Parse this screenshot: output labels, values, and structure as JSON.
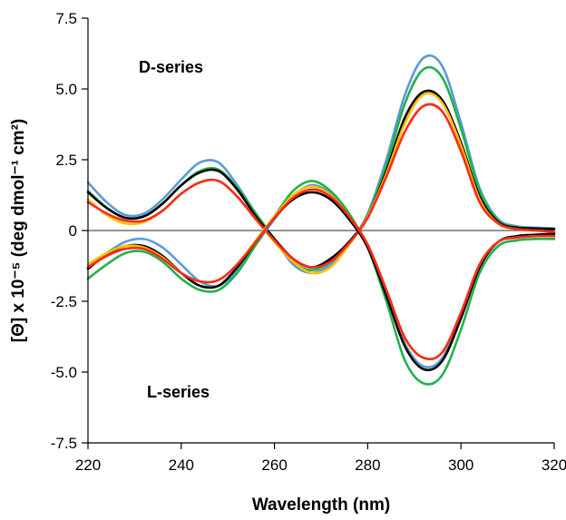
{
  "chart_data": {
    "type": "line",
    "title": "",
    "xlabel": "Wavelength (nm)",
    "ylabel": "[Θ] x 10⁻⁵ (deg dmol⁻¹ cm²)",
    "xlim": [
      220,
      320
    ],
    "ylim": [
      -7.5,
      7.5
    ],
    "x_ticks": [
      "220",
      "240",
      "260",
      "280",
      "300",
      "320"
    ],
    "y_ticks": [
      "7.5",
      "5.0",
      "2.5",
      "0",
      "-2.5",
      "-5.0",
      "-7.5"
    ],
    "grid": false,
    "legend": "none",
    "annotations": [
      {
        "text": "D-series",
        "x": 230,
        "y": 5.8
      },
      {
        "text": "L-series",
        "x": 230,
        "y": -5.8
      }
    ],
    "x": [
      220,
      224,
      228,
      232,
      236,
      240,
      244,
      248,
      252,
      256,
      260,
      264,
      268,
      272,
      276,
      280,
      284,
      288,
      292,
      296,
      300,
      304,
      308,
      312,
      316,
      320
    ],
    "series": [
      {
        "group": "D-series",
        "color": "#5b9bd5",
        "values": [
          1.7,
          1.0,
          0.55,
          0.6,
          1.1,
          1.8,
          2.4,
          2.4,
          1.6,
          0.6,
          -0.3,
          -1.2,
          -1.5,
          -1.2,
          -0.5,
          0.6,
          2.5,
          4.8,
          6.1,
          5.8,
          3.8,
          1.5,
          0.4,
          0.15,
          0.1,
          0.08
        ]
      },
      {
        "group": "D-series",
        "color": "#22b14c",
        "values": [
          1.4,
          0.8,
          0.45,
          0.5,
          0.95,
          1.6,
          2.1,
          2.15,
          1.5,
          0.6,
          -0.3,
          -1.1,
          -1.4,
          -1.1,
          -0.45,
          0.55,
          2.3,
          4.5,
          5.7,
          5.4,
          3.6,
          1.4,
          0.35,
          0.12,
          0.08,
          0.06
        ]
      },
      {
        "group": "D-series",
        "color": "#000000",
        "values": [
          1.35,
          0.8,
          0.45,
          0.5,
          0.95,
          1.6,
          2.05,
          2.1,
          1.45,
          0.5,
          -0.3,
          -1.0,
          -1.3,
          -1.0,
          -0.4,
          0.5,
          2.1,
          4.0,
          4.9,
          4.6,
          3.1,
          1.2,
          0.3,
          0.1,
          0.07,
          0.05
        ]
      },
      {
        "group": "D-series",
        "color": "#ffc000",
        "values": [
          1.1,
          0.55,
          0.25,
          0.3,
          0.7,
          1.3,
          1.7,
          1.75,
          1.2,
          0.4,
          -0.4,
          -1.1,
          -1.5,
          -1.3,
          -0.5,
          0.5,
          2.0,
          3.8,
          4.8,
          4.5,
          3.0,
          1.1,
          0.25,
          0.05,
          0.0,
          -0.05
        ]
      },
      {
        "group": "D-series",
        "color": "#ff2a1a",
        "values": [
          1.0,
          0.6,
          0.35,
          0.35,
          0.7,
          1.3,
          1.7,
          1.75,
          1.2,
          0.4,
          -0.35,
          -1.0,
          -1.3,
          -1.1,
          -0.45,
          0.45,
          1.9,
          3.5,
          4.4,
          4.2,
          2.8,
          1.0,
          0.25,
          0.05,
          0.0,
          -0.05
        ]
      },
      {
        "group": "L-series",
        "color": "#5b9bd5",
        "values": [
          -1.3,
          -0.8,
          -0.4,
          -0.3,
          -0.6,
          -1.2,
          -1.8,
          -1.95,
          -1.4,
          -0.5,
          0.4,
          1.2,
          1.6,
          1.3,
          0.5,
          -0.6,
          -2.2,
          -4.0,
          -4.8,
          -4.5,
          -3.0,
          -1.2,
          -0.4,
          -0.2,
          -0.15,
          -0.12
        ]
      },
      {
        "group": "L-series",
        "color": "#22b14c",
        "values": [
          -1.7,
          -1.2,
          -0.8,
          -0.75,
          -1.1,
          -1.7,
          -2.1,
          -2.1,
          -1.5,
          -0.5,
          0.5,
          1.4,
          1.75,
          1.4,
          0.6,
          -0.6,
          -2.5,
          -4.6,
          -5.4,
          -5.1,
          -3.5,
          -1.5,
          -0.55,
          -0.35,
          -0.3,
          -0.3
        ]
      },
      {
        "group": "L-series",
        "color": "#000000",
        "values": [
          -1.35,
          -0.85,
          -0.55,
          -0.55,
          -0.9,
          -1.5,
          -1.95,
          -1.95,
          -1.3,
          -0.4,
          0.45,
          1.1,
          1.35,
          1.1,
          0.4,
          -0.6,
          -2.3,
          -4.1,
          -4.9,
          -4.6,
          -3.1,
          -1.3,
          -0.4,
          -0.2,
          -0.15,
          -0.12
        ]
      },
      {
        "group": "L-series",
        "color": "#ffc000",
        "values": [
          -1.2,
          -0.8,
          -0.55,
          -0.6,
          -0.95,
          -1.5,
          -1.8,
          -1.75,
          -1.2,
          -0.35,
          0.5,
          1.25,
          1.55,
          1.25,
          0.5,
          -0.5,
          -2.1,
          -3.8,
          -4.5,
          -4.3,
          -2.9,
          -1.2,
          -0.4,
          -0.25,
          -0.2,
          -0.2
        ]
      },
      {
        "group": "L-series",
        "color": "#ff2a1a",
        "values": [
          -1.3,
          -0.9,
          -0.65,
          -0.65,
          -1.0,
          -1.5,
          -1.8,
          -1.75,
          -1.2,
          -0.4,
          0.45,
          1.15,
          1.45,
          1.2,
          0.5,
          -0.5,
          -2.1,
          -3.8,
          -4.5,
          -4.3,
          -2.9,
          -1.2,
          -0.4,
          -0.25,
          -0.2,
          -0.2
        ]
      }
    ]
  }
}
